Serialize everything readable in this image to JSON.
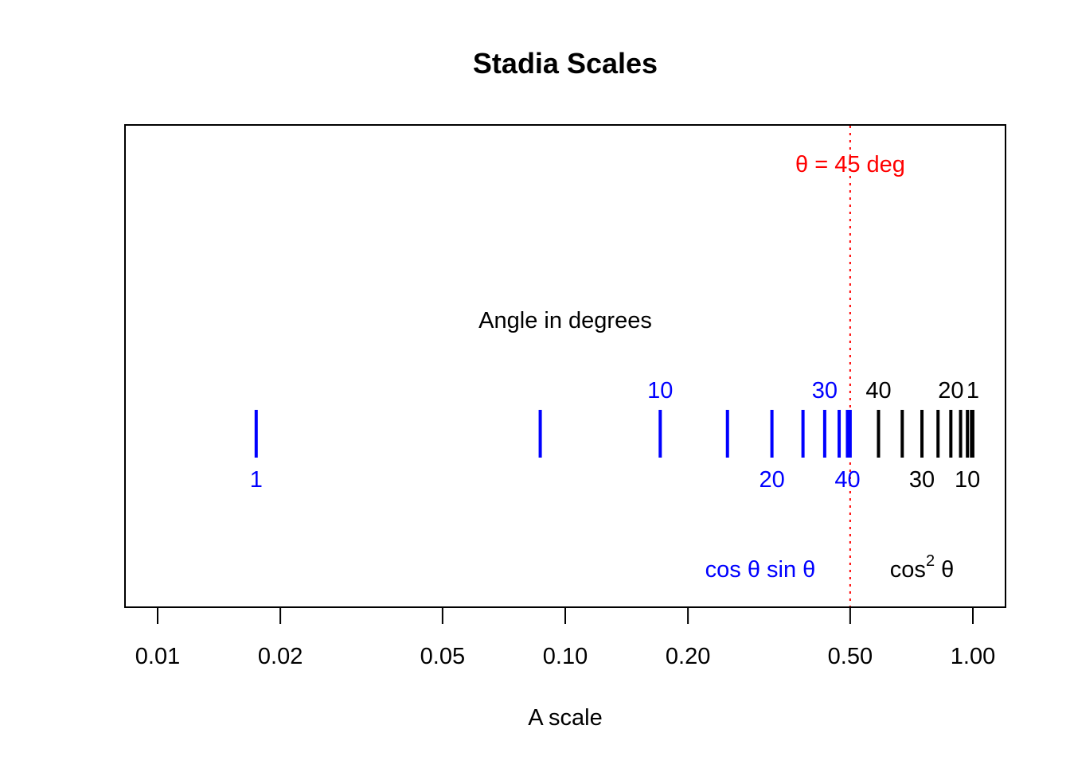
{
  "chart_data": {
    "type": "scatter",
    "title": "Stadia Scales",
    "xlabel": "A scale",
    "ylabel": "",
    "x_scale": "log",
    "xlim": [
      0.0092,
      1.08
    ],
    "x_ticks": [
      0.01,
      0.02,
      0.05,
      0.1,
      0.2,
      0.5,
      1.0
    ],
    "x_tick_labels": [
      "0.01",
      "0.02",
      "0.05",
      "0.10",
      "0.20",
      "0.50",
      "1.00"
    ],
    "grid": false,
    "colors": {
      "sin_series": "#0000ff",
      "cos2_series": "#000000",
      "reference": "#ff0000"
    },
    "center_label": "Angle in degrees",
    "series": [
      {
        "name": "cos θ sin θ",
        "color": "#0000ff",
        "angles_deg": [
          1,
          5,
          10,
          15,
          20,
          25,
          30,
          35,
          40,
          45
        ],
        "x": [
          0.01745,
          0.08682,
          0.17101,
          0.25,
          0.32139,
          0.38302,
          0.43301,
          0.46985,
          0.4924,
          0.5
        ],
        "labels_above": [
          {
            "angle": 10,
            "x": 0.17101,
            "text": "10"
          },
          {
            "angle": 30,
            "x": 0.43301,
            "text": "30"
          }
        ],
        "labels_below": [
          {
            "angle": 1,
            "x": 0.01745,
            "text": "1"
          },
          {
            "angle": 20,
            "x": 0.32139,
            "text": "20"
          },
          {
            "angle": 40,
            "x": 0.4924,
            "text": "40"
          }
        ]
      },
      {
        "name": "cos² θ",
        "color": "#000000",
        "angles_deg": [
          40,
          35,
          30,
          25,
          20,
          15,
          10,
          5,
          1
        ],
        "x": [
          0.58682,
          0.67101,
          0.75,
          0.82139,
          0.88302,
          0.93301,
          0.96985,
          0.9924,
          0.9997
        ],
        "labels_above": [
          {
            "angle": 40,
            "x": 0.58682,
            "text": "40"
          },
          {
            "angle": 20,
            "x": 0.88302,
            "text": "20"
          },
          {
            "angle": 1,
            "x": 0.9997,
            "text": "1"
          }
        ],
        "labels_below": [
          {
            "angle": 30,
            "x": 0.75,
            "text": "30"
          },
          {
            "angle": 10,
            "x": 0.96985,
            "text": "10"
          }
        ]
      }
    ],
    "reference_line": {
      "x": 0.5,
      "style": "dotted",
      "color": "#ff0000",
      "label": "θ = 45 deg"
    },
    "scale_labels": {
      "sin": "cos θ sin θ",
      "cos2_base": "cos",
      "cos2_sup": "2",
      "cos2_theta": "θ"
    }
  }
}
